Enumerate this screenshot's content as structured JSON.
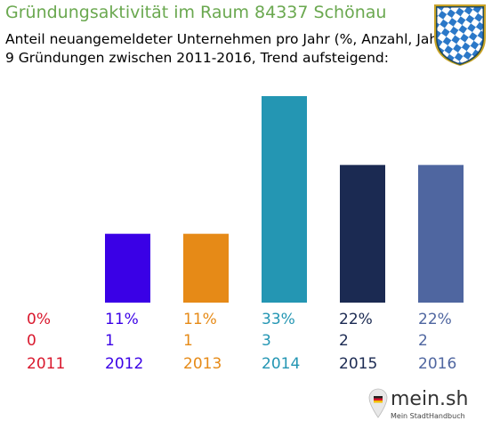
{
  "title": "Gründungsaktivität im Raum 84337 Schönau",
  "subtitle_line1": "Anteil neuangemeldeter Unternehmen pro Jahr (%, Anzahl, Jahr)",
  "subtitle_line2": "9 Gründungen zwischen 2011-2016, Trend aufsteigend:",
  "logo": {
    "name": "mein.sh",
    "tagline": "Mein StadtHandbuch"
  },
  "colors": {
    "title": "#6aa84f"
  },
  "chart_data": {
    "type": "bar",
    "categories": [
      "2011",
      "2012",
      "2013",
      "2014",
      "2015",
      "2016"
    ],
    "values": [
      0,
      11,
      11,
      33,
      22,
      22
    ],
    "percent_labels": [
      "0%",
      "11%",
      "11%",
      "33%",
      "22%",
      "22%"
    ],
    "counts": [
      0,
      1,
      1,
      3,
      2,
      2
    ],
    "colors": [
      "#d9182d",
      "#3a00e6",
      "#e68a17",
      "#2496b3",
      "#1b2a52",
      "#4f66a0"
    ],
    "ylim": [
      0,
      33
    ],
    "grid": false,
    "legend": "none"
  }
}
